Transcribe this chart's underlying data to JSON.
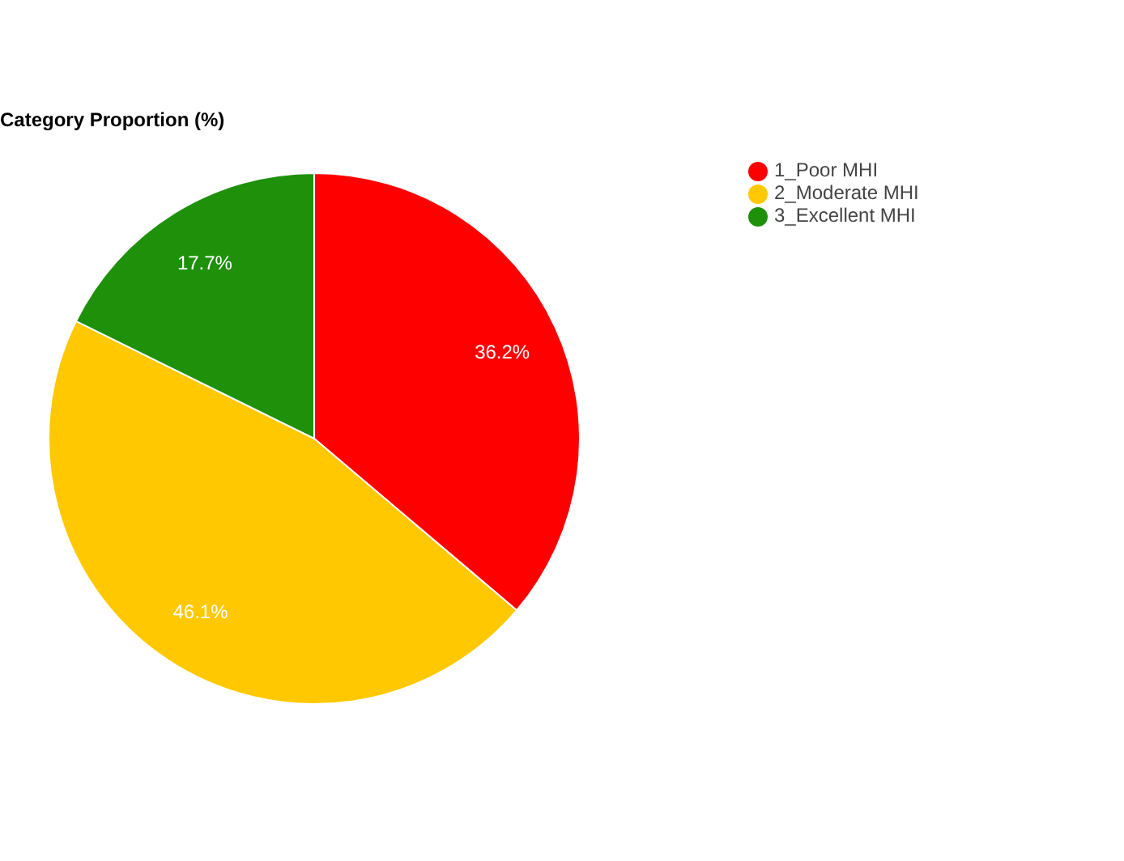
{
  "chart_data": {
    "type": "pie",
    "title": "Category Proportion (%)",
    "categories": [
      "1_Poor MHI",
      "2_Moderate MHI",
      "3_Excellent MHI"
    ],
    "values": [
      36.2,
      46.1,
      17.7
    ],
    "colors": [
      "#ff0000",
      "#ffc800",
      "#1e900a"
    ],
    "value_labels": [
      "36.2%",
      "46.1%",
      "17.7%"
    ],
    "legend": "top right"
  }
}
